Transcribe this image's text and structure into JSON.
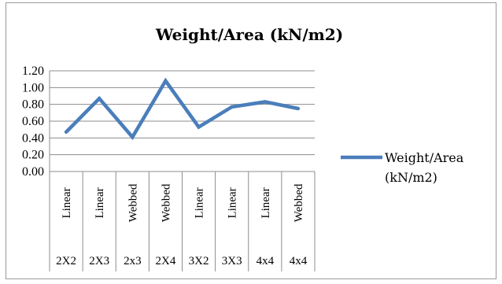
{
  "chart_data": {
    "type": "line",
    "title": "Weight/Area (kN/m2)",
    "xlabel": "",
    "ylabel": "",
    "ylim": [
      0,
      1.2
    ],
    "yticks": [
      "1.20",
      "1.00",
      "0.80",
      "0.60",
      "0.40",
      "0.20",
      "0.00"
    ],
    "grid": true,
    "legend_position": "right",
    "categories": [
      {
        "type": "Linear",
        "size": "2X2"
      },
      {
        "type": "Linear",
        "size": "2X3"
      },
      {
        "type": "Webbed",
        "size": "2x3"
      },
      {
        "type": "Webbed",
        "size": "2X4"
      },
      {
        "type": "Linear",
        "size": "3X2"
      },
      {
        "type": "Linear",
        "size": "3X3"
      },
      {
        "type": "Linear",
        "size": "4x4"
      },
      {
        "type": "Webbed",
        "size": "4x4"
      }
    ],
    "series": [
      {
        "name": "Weight/Area (kN/m2)",
        "legend_lines": [
          "Weight/Area",
          "(kN/m2)"
        ],
        "color": "#4a7ebb",
        "values": [
          0.47,
          0.87,
          0.41,
          1.08,
          0.53,
          0.77,
          0.83,
          0.75
        ]
      }
    ]
  }
}
